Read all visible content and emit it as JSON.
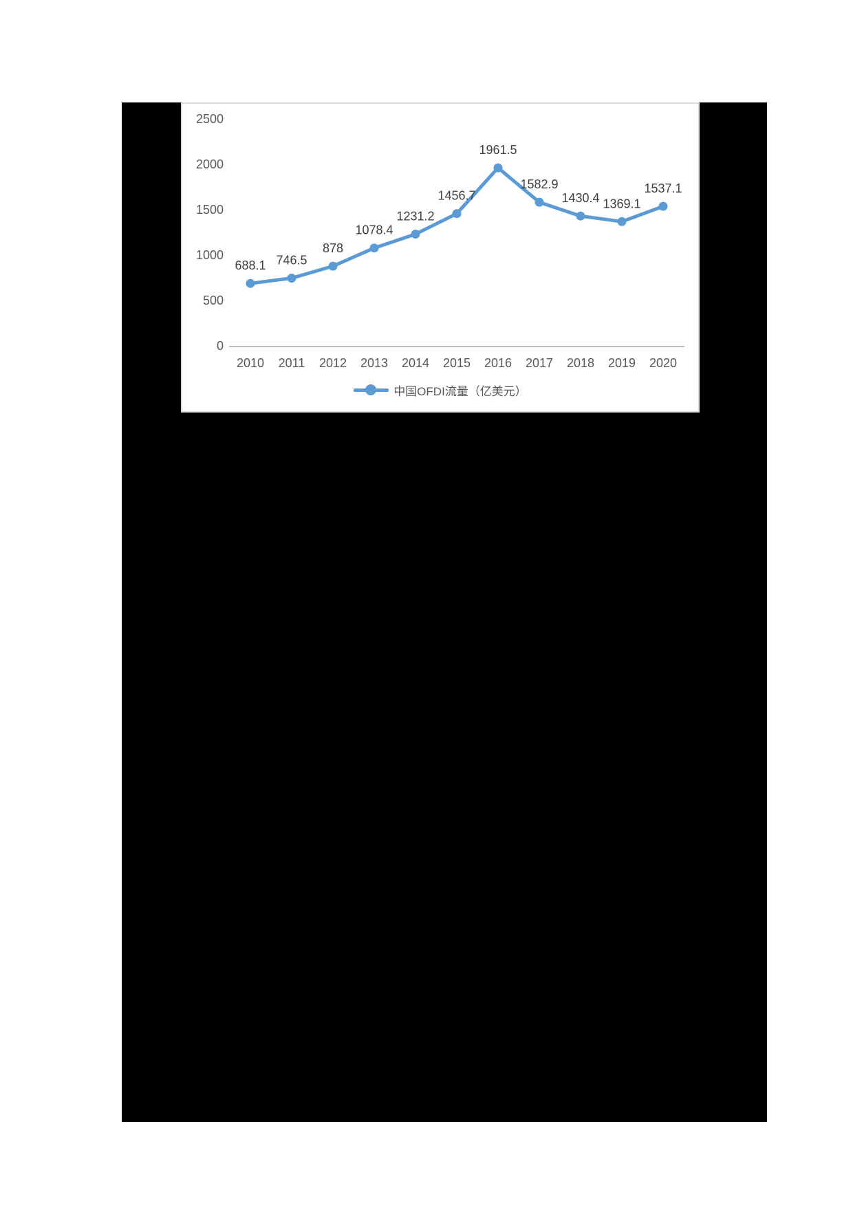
{
  "figure": {
    "page_background": "#ffffff",
    "panel_background": "#000000",
    "card_background": "#ffffff",
    "card_border_color": "#d9d9d9"
  },
  "chart_data": {
    "type": "line",
    "title": "",
    "xlabel": "",
    "ylabel": "",
    "categories": [
      "2010",
      "2011",
      "2012",
      "2013",
      "2014",
      "2015",
      "2016",
      "2017",
      "2018",
      "2019",
      "2020"
    ],
    "series": [
      {
        "name": "中国OFDI流量（亿美元）",
        "values": [
          688.1,
          746.5,
          878,
          1078.4,
          1231.2,
          1456.7,
          1961.5,
          1582.9,
          1430.4,
          1369.1,
          1537.1
        ]
      }
    ],
    "data_labels": [
      "688.1",
      "746.5",
      "878",
      "1078.4",
      "1231.2",
      "1456.7",
      "1961.5",
      "1582.9",
      "1430.4",
      "1369.1",
      "1537.1"
    ],
    "ylim": [
      0,
      2500
    ],
    "ytick_step": 500,
    "yticks": [
      "0",
      "500",
      "1000",
      "1500",
      "2000",
      "2500"
    ],
    "grid": "off",
    "legend_position": "bottom",
    "marker": "circle",
    "colors": {
      "line": "#5B9BD5",
      "axis_text": "#595959",
      "data_label": "#404040",
      "axis_line": "#BFBFBF"
    }
  }
}
